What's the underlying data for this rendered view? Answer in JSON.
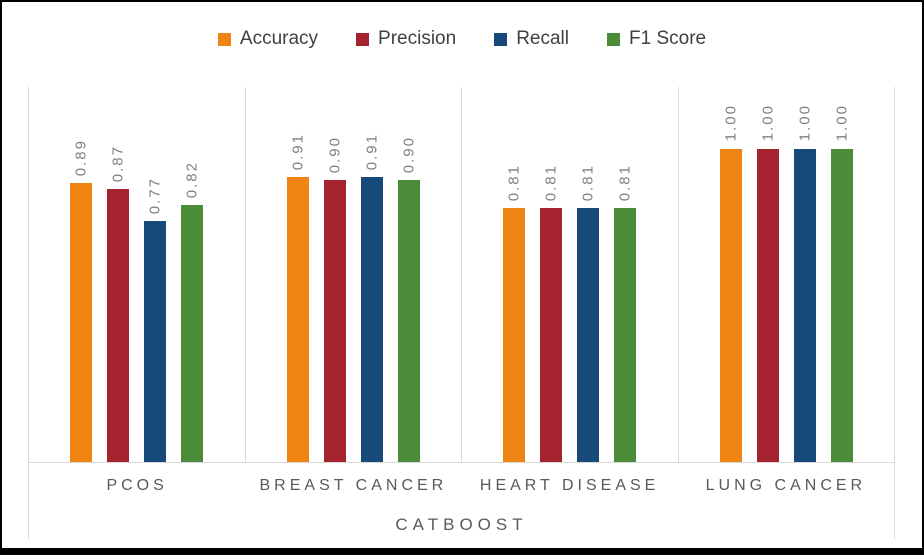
{
  "chart_data": {
    "type": "bar",
    "title": "",
    "xlabel": "CATBOOST",
    "ylabel": "",
    "categories": [
      "PCOS",
      "BREAST CANCER",
      "HEART DISEASE",
      "LUNG CANCER"
    ],
    "series": [
      {
        "name": "Accuracy",
        "color": "#EE8512",
        "values": [
          0.89,
          0.91,
          0.81,
          1.0
        ]
      },
      {
        "name": "Precision",
        "color": "#A4232F",
        "values": [
          0.87,
          0.9,
          0.81,
          1.0
        ]
      },
      {
        "name": "Recall",
        "color": "#17497B",
        "values": [
          0.77,
          0.91,
          0.81,
          1.0
        ]
      },
      {
        "name": "F1 Score",
        "color": "#4C8B37",
        "values": [
          0.82,
          0.9,
          0.81,
          1.0
        ]
      }
    ],
    "data_labels_format": "0.00",
    "ylim": [
      0,
      1.2
    ],
    "y_axis_visible": false,
    "grid": "vertical-category-separators",
    "legend_position": "top",
    "data_label_rotation": -90
  }
}
